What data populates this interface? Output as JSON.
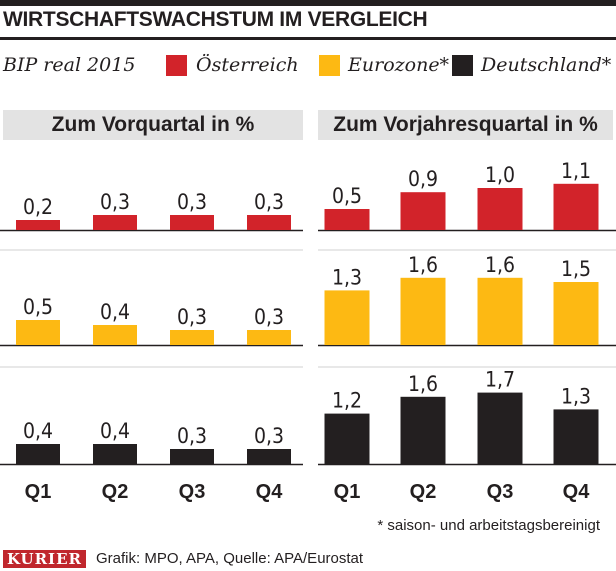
{
  "header": {
    "title": "WIRTSCHAFTSWACHSTUM IM VERGLEICH"
  },
  "legend": {
    "label": "BIP real 2015",
    "items": [
      {
        "name": "Österreich",
        "color": "#d2232a"
      },
      {
        "name": "Eurozone*",
        "color": "#fdb913"
      },
      {
        "name": "Deutschland*",
        "color": "#231f20"
      }
    ]
  },
  "panels": {
    "left_title": "Zum Vorquartal in %",
    "right_title": "Zum Vorjahresquartal in %"
  },
  "chart_data": [
    {
      "type": "bar",
      "title": "Zum Vorquartal in %",
      "categories": [
        "Q1",
        "Q2",
        "Q3",
        "Q4"
      ],
      "series": [
        {
          "name": "Österreich",
          "color": "#d2232a",
          "values": [
            0.2,
            0.3,
            0.3,
            0.3
          ],
          "labels": [
            "0,2",
            "0,3",
            "0,3",
            "0,3"
          ]
        },
        {
          "name": "Eurozone*",
          "color": "#fdb913",
          "values": [
            0.5,
            0.4,
            0.3,
            0.3
          ],
          "labels": [
            "0,5",
            "0,4",
            "0,3",
            "0,3"
          ]
        },
        {
          "name": "Deutschland*",
          "color": "#231f20",
          "values": [
            0.4,
            0.4,
            0.3,
            0.3
          ],
          "labels": [
            "0,4",
            "0,4",
            "0,3",
            "0,3"
          ]
        }
      ]
    },
    {
      "type": "bar",
      "title": "Zum Vorjahresquartal in %",
      "categories": [
        "Q1",
        "Q2",
        "Q3",
        "Q4"
      ],
      "series": [
        {
          "name": "Österreich",
          "color": "#d2232a",
          "values": [
            0.5,
            0.9,
            1.0,
            1.1
          ],
          "labels": [
            "0,5",
            "0,9",
            "1,0",
            "1,1"
          ]
        },
        {
          "name": "Eurozone*",
          "color": "#fdb913",
          "values": [
            1.3,
            1.6,
            1.6,
            1.5
          ],
          "labels": [
            "1,3",
            "1,6",
            "1,6",
            "1,5"
          ]
        },
        {
          "name": "Deutschland*",
          "color": "#231f20",
          "values": [
            1.2,
            1.6,
            1.7,
            1.3
          ],
          "labels": [
            "1,2",
            "1,6",
            "1,7",
            "1,3"
          ]
        }
      ]
    }
  ],
  "footnote": "* saison- und arbeitstagsbereinigt",
  "footer": {
    "brand": "KURIER",
    "credit": "Grafik: MPO, APA, Quelle: APA/Eurostat"
  },
  "colors": {
    "grid": "#231f20",
    "panel_header_bg": "#e3e3e3",
    "brand_bg": "#c0272d"
  }
}
